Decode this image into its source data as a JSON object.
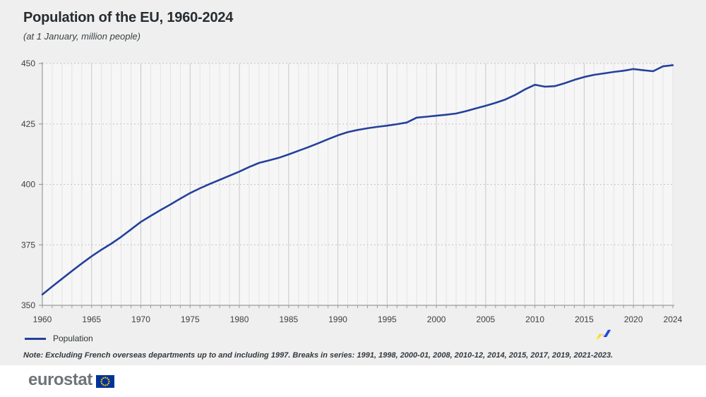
{
  "header": {
    "title": "Population of the EU, 1960-2024",
    "subtitle": "(at 1 January, million people)"
  },
  "legend": {
    "label": "Population"
  },
  "note": {
    "text": "Note: Excluding French overseas departments up to and including 1997. Breaks in series: 1991, 1998, 2000-01, 2008, 2010-12, 2014, 2015, 2017, 2019, 2021-2023."
  },
  "footer": {
    "logo_text": "eurostat",
    "flag_icon": "eu-flag-icon",
    "zigzag_icon": "trend-zigzag-graphic"
  },
  "colors": {
    "page_background": "#efefef",
    "plot_background": "#f6f6f6",
    "line": "#24419b",
    "grid_minor": "#e4e4e4",
    "grid_major": "#c7c7c7",
    "grid_dotted": "#c4c4c4",
    "axis": "#9b9b9b",
    "flag_blue": "#003399",
    "flag_stars": "#ffcc00",
    "zigzag_yellow": "#ffd617",
    "zigzag_blue": "#1d49d8"
  },
  "chart_data": {
    "type": "line",
    "title": "Population of the EU, 1960-2024",
    "subtitle": "(at 1 January, million people)",
    "xlabel": "",
    "ylabel": "",
    "xlim": [
      1960,
      2024
    ],
    "ylim": [
      350,
      450
    ],
    "grid": true,
    "legend_position": "bottom-left",
    "xticks": [
      1960,
      1965,
      1970,
      1975,
      1980,
      1985,
      1990,
      1995,
      2000,
      2005,
      2010,
      2015,
      2020,
      2024
    ],
    "yticks": [
      350,
      375,
      400,
      425,
      450
    ],
    "x": [
      1960,
      1961,
      1962,
      1963,
      1964,
      1965,
      1966,
      1967,
      1968,
      1969,
      1970,
      1971,
      1972,
      1973,
      1974,
      1975,
      1976,
      1977,
      1978,
      1979,
      1980,
      1981,
      1982,
      1983,
      1984,
      1985,
      1986,
      1987,
      1988,
      1989,
      1990,
      1991,
      1992,
      1993,
      1994,
      1995,
      1996,
      1997,
      1998,
      1999,
      2000,
      2001,
      2002,
      2003,
      2004,
      2005,
      2006,
      2007,
      2008,
      2009,
      2010,
      2011,
      2012,
      2013,
      2014,
      2015,
      2016,
      2017,
      2018,
      2019,
      2020,
      2021,
      2022,
      2023,
      2024
    ],
    "series": [
      {
        "name": "Population",
        "color": "#24419b",
        "values": [
          354.5,
          357.8,
          361.0,
          364.2,
          367.3,
          370.3,
          373.0,
          375.5,
          378.3,
          381.4,
          384.5,
          387.0,
          389.4,
          391.7,
          394.1,
          396.4,
          398.4,
          400.2,
          401.9,
          403.6,
          405.3,
          407.2,
          408.9,
          409.9,
          411.0,
          412.4,
          413.9,
          415.4,
          417.0,
          418.7,
          420.3,
          421.6,
          422.5,
          423.2,
          423.8,
          424.3,
          424.9,
          425.6,
          427.6,
          428.0,
          428.4,
          428.8,
          429.3,
          430.3,
          431.4,
          432.5,
          433.7,
          435.1,
          437.0,
          439.3,
          441.2,
          440.4,
          440.6,
          441.8,
          443.2,
          444.4,
          445.3,
          445.9,
          446.5,
          447.0,
          447.7,
          447.2,
          446.8,
          448.8,
          449.3
        ]
      }
    ]
  }
}
